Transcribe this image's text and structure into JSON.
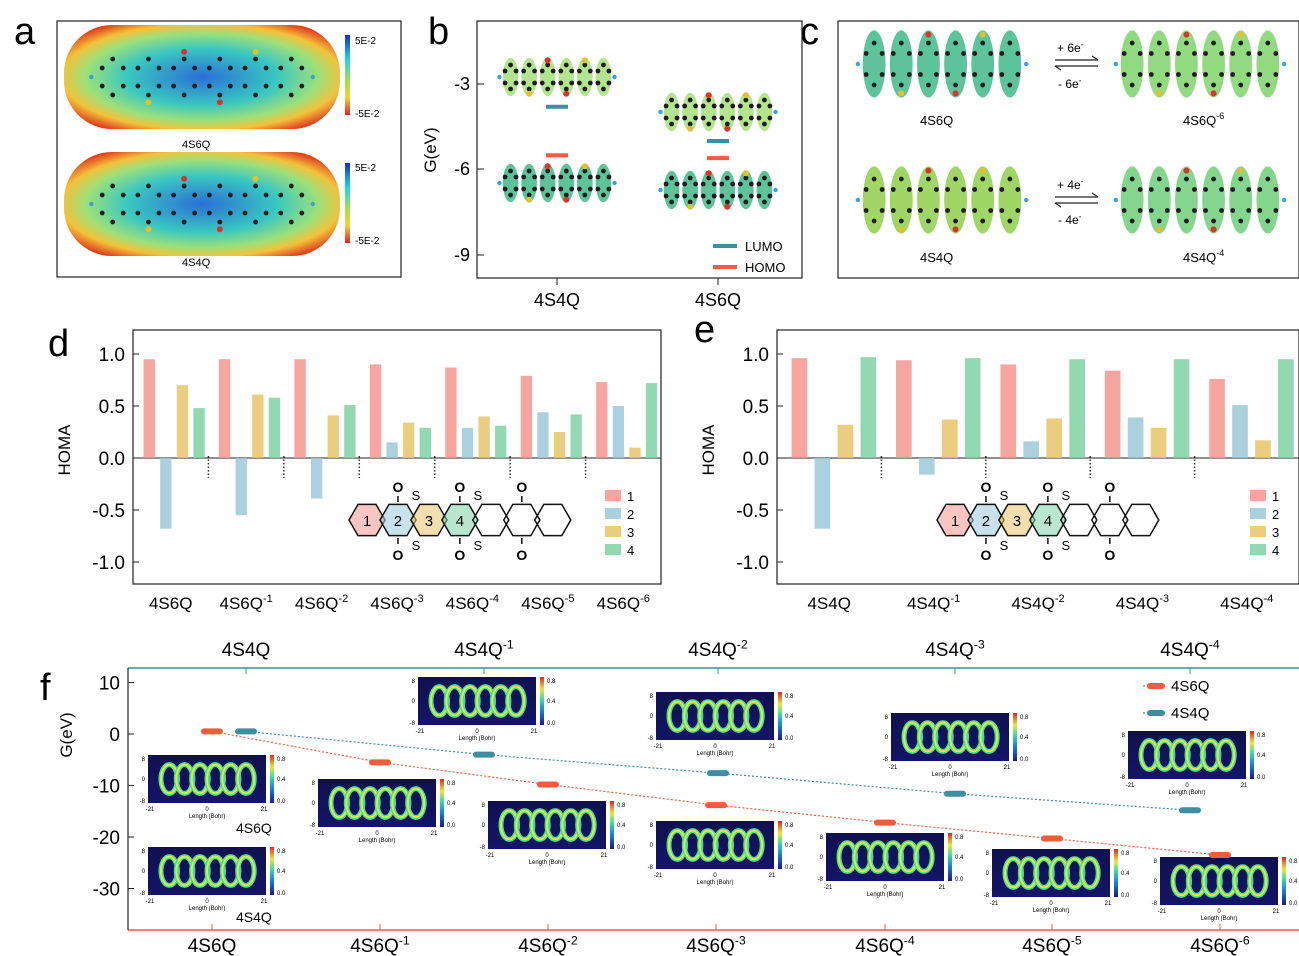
{
  "panel_letters": [
    "a",
    "b",
    "c",
    "d",
    "e",
    "f"
  ],
  "colors": {
    "ring1": "#f4978e",
    "ring2": "#9cc9d8",
    "ring3": "#e8c46a",
    "ring4": "#7fd1a6",
    "lumo": "#3c8fa0",
    "homo": "#f25c3b",
    "s6q_line": "#f25c3b",
    "s4q_line": "#3c8fa0",
    "frame_top_f": "#3c8fa0",
    "frame_bottom_f": "#f25c3b"
  },
  "panel_a": {
    "maps": [
      {
        "molecule": "4S6Q",
        "scale_max": "5E-2",
        "scale_min": "-5E-2"
      },
      {
        "molecule": "4S4Q",
        "scale_max": "5E-2",
        "scale_min": "-5E-2"
      }
    ]
  },
  "panel_b": {
    "ylabel": "G(eV)",
    "ytick_labels": [
      "-3",
      "-6",
      "-9"
    ],
    "xtick_labels": [
      "4S4Q",
      "4S6Q"
    ],
    "legend": [
      "LUMO",
      "HOMO"
    ]
  },
  "panel_c": {
    "rows": [
      {
        "neutral": "4S6Q",
        "reduced": "4S6Q",
        "charge": "-6",
        "forward": "+ 6e",
        "backward": "- 6e",
        "sup": "-"
      },
      {
        "neutral": "4S4Q",
        "reduced": "4S4Q",
        "charge": "-4",
        "forward": "+ 4e",
        "backward": "- 4e",
        "sup": "-"
      }
    ]
  },
  "panel_d": {
    "ylabel": "HOMA",
    "ytick_labels": [
      "1.0",
      "0.5",
      "0.0",
      "-0.5",
      "-1.0"
    ],
    "legend": [
      "1",
      "2",
      "3",
      "4"
    ],
    "groups": [
      {
        "base": "4S6Q",
        "sup": ""
      },
      {
        "base": "4S6Q",
        "sup": "-1"
      },
      {
        "base": "4S6Q",
        "sup": "-2"
      },
      {
        "base": "4S6Q",
        "sup": "-3"
      },
      {
        "base": "4S6Q",
        "sup": "-4"
      },
      {
        "base": "4S6Q",
        "sup": "-5"
      },
      {
        "base": "4S6Q",
        "sup": "-6"
      }
    ],
    "structure": {
      "o": "O",
      "s": "S",
      "rings": [
        "1",
        "2",
        "3",
        "4"
      ]
    }
  },
  "panel_e": {
    "ylabel": "HOMA",
    "ytick_labels": [
      "1.0",
      "0.5",
      "0.0",
      "-0.5",
      "-1.0"
    ],
    "legend": [
      "1",
      "2",
      "3",
      "4"
    ],
    "groups": [
      {
        "base": "4S4Q",
        "sup": ""
      },
      {
        "base": "4S4Q",
        "sup": "-1"
      },
      {
        "base": "4S4Q",
        "sup": "-2"
      },
      {
        "base": "4S4Q",
        "sup": "-3"
      },
      {
        "base": "4S4Q",
        "sup": "-4"
      }
    ],
    "structure": {
      "o": "O",
      "s": "S",
      "rings": [
        "1",
        "2",
        "3",
        "4"
      ]
    }
  },
  "panel_f": {
    "ylabel": "G(eV)",
    "ytick_labels": [
      "10",
      "0",
      "-10",
      "-20",
      "-30"
    ],
    "top_labels": [
      {
        "base": "4S4Q",
        "sup": ""
      },
      {
        "base": "4S4Q",
        "sup": "-1"
      },
      {
        "base": "4S4Q",
        "sup": "-2"
      },
      {
        "base": "4S4Q",
        "sup": "-3"
      },
      {
        "base": "4S4Q",
        "sup": "-4"
      }
    ],
    "bottom_labels": [
      {
        "base": "4S6Q",
        "sup": ""
      },
      {
        "base": "4S6Q",
        "sup": "-1"
      },
      {
        "base": "4S6Q",
        "sup": "-2"
      },
      {
        "base": "4S6Q",
        "sup": "-3"
      },
      {
        "base": "4S6Q",
        "sup": "-4"
      },
      {
        "base": "4S6Q",
        "sup": "-5"
      },
      {
        "base": "4S6Q",
        "sup": "-6"
      }
    ],
    "legend": [
      "4S6Q",
      "4S4Q"
    ],
    "elf_labels": [
      "4S6Q",
      "4S4Q"
    ],
    "elf_ticks": {
      "xmin": "-21",
      "xmid": "0",
      "xmax": "21",
      "ymax": "8",
      "ymid": "0",
      "ymin": "-8",
      "xlabel": "Length (Bohr)",
      "cmax": "0.8",
      "cmid": "0.4",
      "cmin": "0.0"
    }
  },
  "chart_data": [
    {
      "type": "bar",
      "title": "",
      "ylabel": "HOMA",
      "ylim": [
        -1.2,
        1.2
      ],
      "grid": false,
      "legend_position": "right",
      "categories": [
        "4S6Q",
        "4S6Q-1",
        "4S6Q-2",
        "4S6Q-3",
        "4S6Q-4",
        "4S6Q-5",
        "4S6Q-6"
      ],
      "series": [
        {
          "name": "1",
          "values": [
            0.95,
            0.95,
            0.95,
            0.9,
            0.87,
            0.79,
            0.73
          ]
        },
        {
          "name": "2",
          "values": [
            -0.68,
            -0.55,
            -0.39,
            0.15,
            0.29,
            0.44,
            0.5
          ]
        },
        {
          "name": "3",
          "values": [
            0.7,
            0.61,
            0.41,
            0.34,
            0.4,
            0.25,
            0.1
          ]
        },
        {
          "name": "4",
          "values": [
            0.48,
            0.58,
            0.51,
            0.29,
            0.31,
            0.42,
            0.72
          ]
        }
      ]
    },
    {
      "type": "bar",
      "title": "",
      "ylabel": "HOMA",
      "ylim": [
        -1.2,
        1.2
      ],
      "grid": false,
      "legend_position": "right",
      "categories": [
        "4S4Q",
        "4S4Q-1",
        "4S4Q-2",
        "4S4Q-3",
        "4S4Q-4"
      ],
      "series": [
        {
          "name": "1",
          "values": [
            0.96,
            0.94,
            0.9,
            0.84,
            0.76
          ]
        },
        {
          "name": "2",
          "values": [
            -0.68,
            -0.16,
            0.16,
            0.39,
            0.51
          ]
        },
        {
          "name": "3",
          "values": [
            0.32,
            0.37,
            0.38,
            0.29,
            0.17
          ]
        },
        {
          "name": "4",
          "values": [
            0.97,
            0.96,
            0.95,
            0.95,
            0.95
          ]
        }
      ]
    },
    {
      "type": "line",
      "title": "",
      "ylabel": "G(eV)",
      "ylim": [
        -35,
        12
      ],
      "legend_position": "top-right",
      "series": [
        {
          "name": "4S6Q",
          "x": [
            "4S6Q",
            "4S6Q-1",
            "4S6Q-2",
            "4S6Q-3",
            "4S6Q-4",
            "4S6Q-5",
            "4S6Q-6"
          ],
          "values": [
            0.5,
            -5.5,
            -9.8,
            -13.8,
            -17.2,
            -20.3,
            -23.5
          ]
        },
        {
          "name": "4S4Q",
          "x": [
            "4S4Q",
            "4S4Q-1",
            "4S4Q-2",
            "4S4Q-3",
            "4S4Q-4"
          ],
          "values": [
            0.5,
            -4.0,
            -7.6,
            -11.6,
            -14.8
          ]
        }
      ]
    },
    {
      "type": "scatter",
      "title": "",
      "ylabel": "G(eV)",
      "ylim": [
        -10,
        -1
      ],
      "legend_position": "bottom-right",
      "categories": [
        "4S4Q",
        "4S6Q"
      ],
      "series": [
        {
          "name": "LUMO",
          "values": [
            -3.8,
            -5.0
          ]
        },
        {
          "name": "HOMO",
          "values": [
            -5.5,
            -5.6
          ]
        }
      ]
    }
  ]
}
